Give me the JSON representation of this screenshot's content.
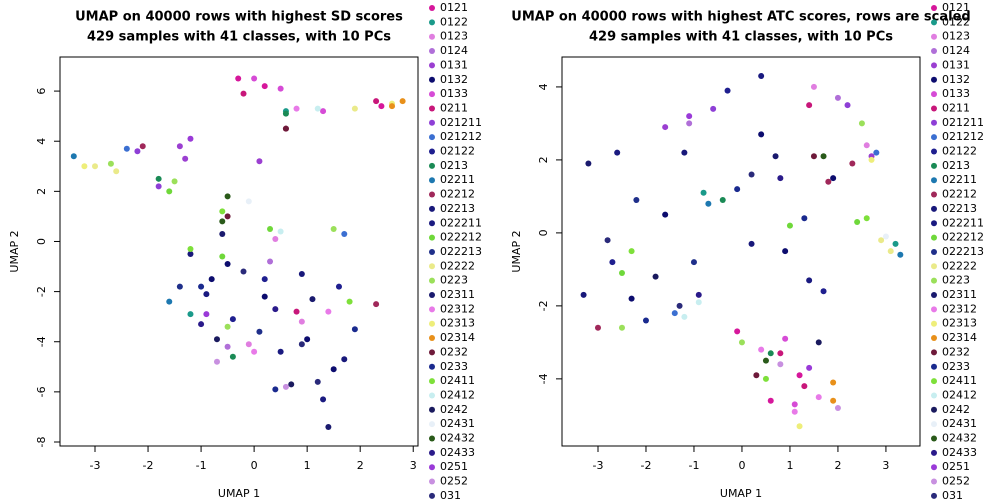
{
  "chart_data": [
    {
      "type": "scatter",
      "title": "UMAP on 40000 rows with highest SD scores",
      "subtitle": "429 samples with 41 classes, with 10 PCs",
      "xlabel": "UMAP 1",
      "ylabel": "UMAP 2",
      "xlim": [
        -3.66,
        3.09
      ],
      "ylim": [
        -8.16,
        7.36
      ],
      "xticks": [
        -3,
        -2,
        -1,
        0,
        1,
        2,
        3
      ],
      "yticks": [
        -8,
        -6,
        -4,
        -2,
        0,
        2,
        4,
        6
      ],
      "series": [
        {
          "name": "0121",
          "color": "#d6179b",
          "x": [
            -0.3,
            0.2,
            2.4
          ],
          "values": [
            6.5,
            6.2,
            5.4
          ]
        },
        {
          "name": "0122",
          "color": "#1a9a8a",
          "x": [
            0.6,
            -1.2
          ],
          "values": [
            5.2,
            -2.9
          ]
        },
        {
          "name": "0123",
          "color": "#e07ee0",
          "x": [
            0.4,
            -0.1,
            0.9
          ],
          "values": [
            0.1,
            -4.1,
            -3.2
          ]
        },
        {
          "name": "0124",
          "color": "#b06fd8",
          "x": [
            -0.5,
            0.3
          ],
          "values": [
            -4.2,
            -0.8
          ]
        },
        {
          "name": "0131",
          "color": "#9b3fd1",
          "x": [
            -1.4,
            -1.3,
            0.1
          ],
          "values": [
            3.8,
            3.3,
            3.2
          ]
        },
        {
          "name": "0132",
          "color": "#0c0c6e",
          "x": [
            -0.8,
            0.2,
            1.0,
            -0.5,
            1.5
          ],
          "values": [
            -1.5,
            -2.2,
            -3.9,
            -0.9,
            -5.1
          ]
        },
        {
          "name": "0133",
          "color": "#d64bd6",
          "x": [
            0,
            0.5,
            1.3
          ],
          "values": [
            6.5,
            6.1,
            5.2
          ]
        },
        {
          "name": "0211",
          "color": "#c8177a",
          "x": [
            -0.2,
            0.8,
            2.3
          ],
          "values": [
            5.9,
            -2.8,
            5.6
          ]
        },
        {
          "name": "021211",
          "color": "#8e3fd6",
          "x": [
            -2.2,
            -1.8
          ],
          "values": [
            3.6,
            2.2
          ]
        },
        {
          "name": "021212",
          "color": "#3b6fd1",
          "x": [
            -2.4,
            1.7
          ],
          "values": [
            3.7,
            0.3
          ]
        },
        {
          "name": "02122",
          "color": "#1f1f8f",
          "x": [
            0.2,
            -0.4,
            1.6
          ],
          "values": [
            -1.5,
            -3.1,
            -1.8
          ]
        },
        {
          "name": "0213",
          "color": "#1a8a55",
          "x": [
            0.6,
            -1.8,
            -0.4
          ],
          "values": [
            5.1,
            2.5,
            -4.6
          ]
        },
        {
          "name": "02211",
          "color": "#1d78b0",
          "x": [
            -3.4,
            -1.6
          ],
          "values": [
            3.4,
            -2.4
          ]
        },
        {
          "name": "02212",
          "color": "#a0285a",
          "x": [
            -2.1,
            2.3,
            0.6
          ],
          "values": [
            3.8,
            -2.5,
            4.5
          ]
        },
        {
          "name": "02213",
          "color": "#18187a",
          "x": [
            -1.2,
            0.9,
            1.7
          ],
          "values": [
            -0.5,
            -1.3,
            -4.7
          ]
        },
        {
          "name": "022211",
          "color": "#1a1a80",
          "x": [
            -0.9,
            0.5,
            1.3
          ],
          "values": [
            -2.1,
            -4.4,
            -6.3
          ]
        },
        {
          "name": "022212",
          "color": "#6fd83a",
          "x": [
            -1.6,
            -0.6,
            0.3
          ],
          "values": [
            2.0,
            -0.6,
            0.5
          ]
        },
        {
          "name": "022213",
          "color": "#1f2f8a",
          "x": [
            -1.4,
            0.1
          ],
          "values": [
            -1.8,
            -3.6
          ]
        },
        {
          "name": "02222",
          "color": "#eaea8a",
          "x": [
            -3.0,
            -2.6,
            1.9
          ],
          "values": [
            3.0,
            2.8,
            5.3
          ]
        },
        {
          "name": "0223",
          "color": "#9be05a",
          "x": [
            -2.7,
            -1.5,
            1.5,
            -0.5
          ],
          "values": [
            3.1,
            2.4,
            0.5,
            -3.4
          ]
        },
        {
          "name": "02311",
          "color": "#1a1a6e",
          "x": [
            -0.6,
            1.1,
            1.4
          ],
          "values": [
            0.3,
            -2.3,
            -7.4
          ]
        },
        {
          "name": "02312",
          "color": "#e87ae8",
          "x": [
            0,
            0.8,
            1.4
          ],
          "values": [
            -4.4,
            5.3,
            -2.8
          ]
        },
        {
          "name": "02313",
          "color": "#eeee7a",
          "x": [
            -3.2,
            2.6
          ],
          "values": [
            3.0,
            5.5
          ]
        },
        {
          "name": "02314",
          "color": "#e8901a",
          "x": [
            2.8,
            2.6
          ],
          "values": [
            5.6,
            5.4
          ]
        },
        {
          "name": "0232",
          "color": "#6e1a3a",
          "x": [
            -0.5,
            0.6
          ],
          "values": [
            1.0,
            4.5
          ]
        },
        {
          "name": "0233",
          "color": "#1a2a8e",
          "x": [
            -1.0,
            0.4,
            1.9
          ],
          "values": [
            -1.8,
            -5.9,
            -3.5
          ]
        },
        {
          "name": "02411",
          "color": "#7ee03a",
          "x": [
            -0.6,
            -1.2,
            1.8
          ],
          "values": [
            1.2,
            -0.3,
            -2.4
          ]
        },
        {
          "name": "02412",
          "color": "#c8eef0",
          "x": [
            1.2,
            0.5
          ],
          "values": [
            5.3,
            0.4
          ]
        },
        {
          "name": "0242",
          "color": "#1a1a5e",
          "x": [
            -0.7,
            0.7
          ],
          "values": [
            -3.9,
            -5.7
          ]
        },
        {
          "name": "02431",
          "color": "#e8f0f8",
          "x": [
            -0.1
          ],
          "values": [
            1.6
          ]
        },
        {
          "name": "02432",
          "color": "#2a5a1a",
          "x": [
            -0.6,
            -0.5
          ],
          "values": [
            0.8,
            1.8
          ]
        },
        {
          "name": "02433",
          "color": "#2a1a8a",
          "x": [
            0.4,
            -1.0
          ],
          "values": [
            -2.7,
            -3.3
          ]
        },
        {
          "name": "0251",
          "color": "#9a3ad8",
          "x": [
            -1.2,
            -0.9
          ],
          "values": [
            4.1,
            -2.9
          ]
        },
        {
          "name": "0252",
          "color": "#c890e0",
          "x": [
            0.6,
            -0.7
          ],
          "values": [
            -5.8,
            -4.8
          ]
        },
        {
          "name": "031",
          "color": "#2a2a7a",
          "x": [
            -0.2,
            0.9,
            1.2
          ],
          "values": [
            -1.2,
            -4.1,
            -5.6
          ]
        }
      ]
    },
    {
      "type": "scatter",
      "title": "UMAP on 40000 rows with highest ATC scores, rows are scaled",
      "subtitle": "429 samples with 41 classes, with 10 PCs",
      "xlabel": "UMAP 1",
      "ylabel": "UMAP 2",
      "xlim": [
        -3.75,
        3.71
      ],
      "ylim": [
        -5.84,
        4.82
      ],
      "xticks": [
        -3,
        -2,
        -1,
        0,
        1,
        2,
        3
      ],
      "yticks": [
        -4,
        -2,
        0,
        2,
        4
      ],
      "series": [
        {
          "name": "0121",
          "color": "#d6179b",
          "x": [
            -0.1,
            1.2,
            0.6
          ],
          "values": [
            -2.7,
            -3.9,
            -4.6
          ]
        },
        {
          "name": "0122",
          "color": "#1a9a8a",
          "x": [
            -0.8,
            3.2
          ],
          "values": [
            1.1,
            -0.3
          ]
        },
        {
          "name": "0123",
          "color": "#e07ee0",
          "x": [
            1.5,
            2.6
          ],
          "values": [
            4.0,
            2.4
          ]
        },
        {
          "name": "0124",
          "color": "#b06fd8",
          "x": [
            -1.1,
            2.0
          ],
          "values": [
            3.0,
            3.7
          ]
        },
        {
          "name": "0131",
          "color": "#9b3fd1",
          "x": [
            -1.6,
            2.7
          ],
          "values": [
            2.9,
            2.1
          ]
        },
        {
          "name": "0132",
          "color": "#0c0c6e",
          "x": [
            -1.6,
            0.4,
            -2.3,
            0.9,
            1.9
          ],
          "values": [
            0.5,
            2.7,
            -1.8,
            -0.5,
            1.5
          ]
        },
        {
          "name": "0133",
          "color": "#d64bd6",
          "x": [
            0.9,
            1.1
          ],
          "values": [
            -2.9,
            -4.7
          ]
        },
        {
          "name": "0211",
          "color": "#c8177a",
          "x": [
            0.8,
            1.4,
            1.3
          ],
          "values": [
            -3.3,
            3.5,
            -4.2
          ]
        },
        {
          "name": "021211",
          "color": "#8e3fd6",
          "x": [
            -0.6,
            2.2
          ],
          "values": [
            3.4,
            3.5
          ]
        },
        {
          "name": "021212",
          "color": "#3b6fd1",
          "x": [
            2.8,
            -1.4
          ],
          "values": [
            2.2,
            -2.2
          ]
        },
        {
          "name": "02122",
          "color": "#1f1f8f",
          "x": [
            -0.3,
            -2.7,
            1.7
          ],
          "values": [
            3.9,
            -0.8,
            -1.6
          ]
        },
        {
          "name": "0213",
          "color": "#1a8a55",
          "x": [
            -0.4,
            0.6
          ],
          "values": [
            0.9,
            -3.3
          ]
        },
        {
          "name": "02211",
          "color": "#1d78b0",
          "x": [
            3.3,
            -0.7
          ],
          "values": [
            -0.6,
            0.8
          ]
        },
        {
          "name": "02212",
          "color": "#a0285a",
          "x": [
            1.8,
            -3.0,
            2.3
          ],
          "values": [
            1.4,
            -2.6,
            1.9
          ]
        },
        {
          "name": "02213",
          "color": "#18187a",
          "x": [
            -1.2,
            0.2,
            -3.3
          ],
          "values": [
            2.2,
            -0.3,
            -1.7
          ]
        },
        {
          "name": "022211",
          "color": "#1a1a80",
          "x": [
            -2.6,
            0.4,
            1.4
          ],
          "values": [
            2.2,
            4.3,
            -1.3
          ]
        },
        {
          "name": "022212",
          "color": "#6fd83a",
          "x": [
            -2.5,
            1.0,
            2.4
          ],
          "values": [
            -1.1,
            0.2,
            0.3
          ]
        },
        {
          "name": "022213",
          "color": "#1f2f8a",
          "x": [
            -2.2,
            -1.0
          ],
          "values": [
            0.9,
            -0.8
          ]
        },
        {
          "name": "02222",
          "color": "#eaea8a",
          "x": [
            2.9,
            3.1
          ],
          "values": [
            -0.2,
            -0.5
          ]
        },
        {
          "name": "0223",
          "color": "#9be05a",
          "x": [
            0.0,
            2.5,
            -2.5
          ],
          "values": [
            -3.0,
            3.0,
            -2.6
          ]
        },
        {
          "name": "02311",
          "color": "#1a1a6e",
          "x": [
            -3.2,
            0.7
          ],
          "values": [
            1.9,
            2.1
          ]
        },
        {
          "name": "02312",
          "color": "#e87ae8",
          "x": [
            1.1,
            1.6,
            0.4
          ],
          "values": [
            -4.9,
            -4.5,
            -3.2
          ]
        },
        {
          "name": "02313",
          "color": "#eeee7a",
          "x": [
            2.7,
            1.2
          ],
          "values": [
            2.0,
            -5.3
          ]
        },
        {
          "name": "02314",
          "color": "#e8901a",
          "x": [
            1.9,
            1.9
          ],
          "values": [
            -4.1,
            -4.6
          ]
        },
        {
          "name": "0232",
          "color": "#6e1a3a",
          "x": [
            0.3,
            1.5
          ],
          "values": [
            -3.9,
            2.1
          ]
        },
        {
          "name": "0233",
          "color": "#1a2a8e",
          "x": [
            -0.1,
            1.3,
            -2.0
          ],
          "values": [
            1.2,
            0.4,
            -2.4
          ]
        },
        {
          "name": "02411",
          "color": "#7ee03a",
          "x": [
            -2.3,
            0.5,
            2.6
          ],
          "values": [
            -0.5,
            -4.0,
            0.4
          ]
        },
        {
          "name": "02412",
          "color": "#c8eef0",
          "x": [
            -1.2,
            -0.9
          ],
          "values": [
            -2.3,
            -1.9
          ]
        },
        {
          "name": "0242",
          "color": "#1a1a5e",
          "x": [
            -1.8,
            1.6
          ],
          "values": [
            -1.2,
            -3.0
          ]
        },
        {
          "name": "02431",
          "color": "#e8f0f8",
          "x": [
            3.0
          ],
          "values": [
            -0.1
          ]
        },
        {
          "name": "02432",
          "color": "#2a5a1a",
          "x": [
            0.5,
            1.7
          ],
          "values": [
            -3.5,
            2.1
          ]
        },
        {
          "name": "02433",
          "color": "#2a1a8a",
          "x": [
            -0.9,
            0.8
          ],
          "values": [
            -1.7,
            1.5
          ]
        },
        {
          "name": "0251",
          "color": "#9a3ad8",
          "x": [
            -1.1,
            1.4
          ],
          "values": [
            3.2,
            -3.7
          ]
        },
        {
          "name": "0252",
          "color": "#c890e0",
          "x": [
            0.8,
            2.0
          ],
          "values": [
            -3.6,
            -4.8
          ]
        },
        {
          "name": "031",
          "color": "#2a2a7a",
          "x": [
            -2.8,
            0.2,
            -1.3
          ],
          "values": [
            -0.2,
            1.6,
            -2.0
          ]
        }
      ]
    }
  ]
}
